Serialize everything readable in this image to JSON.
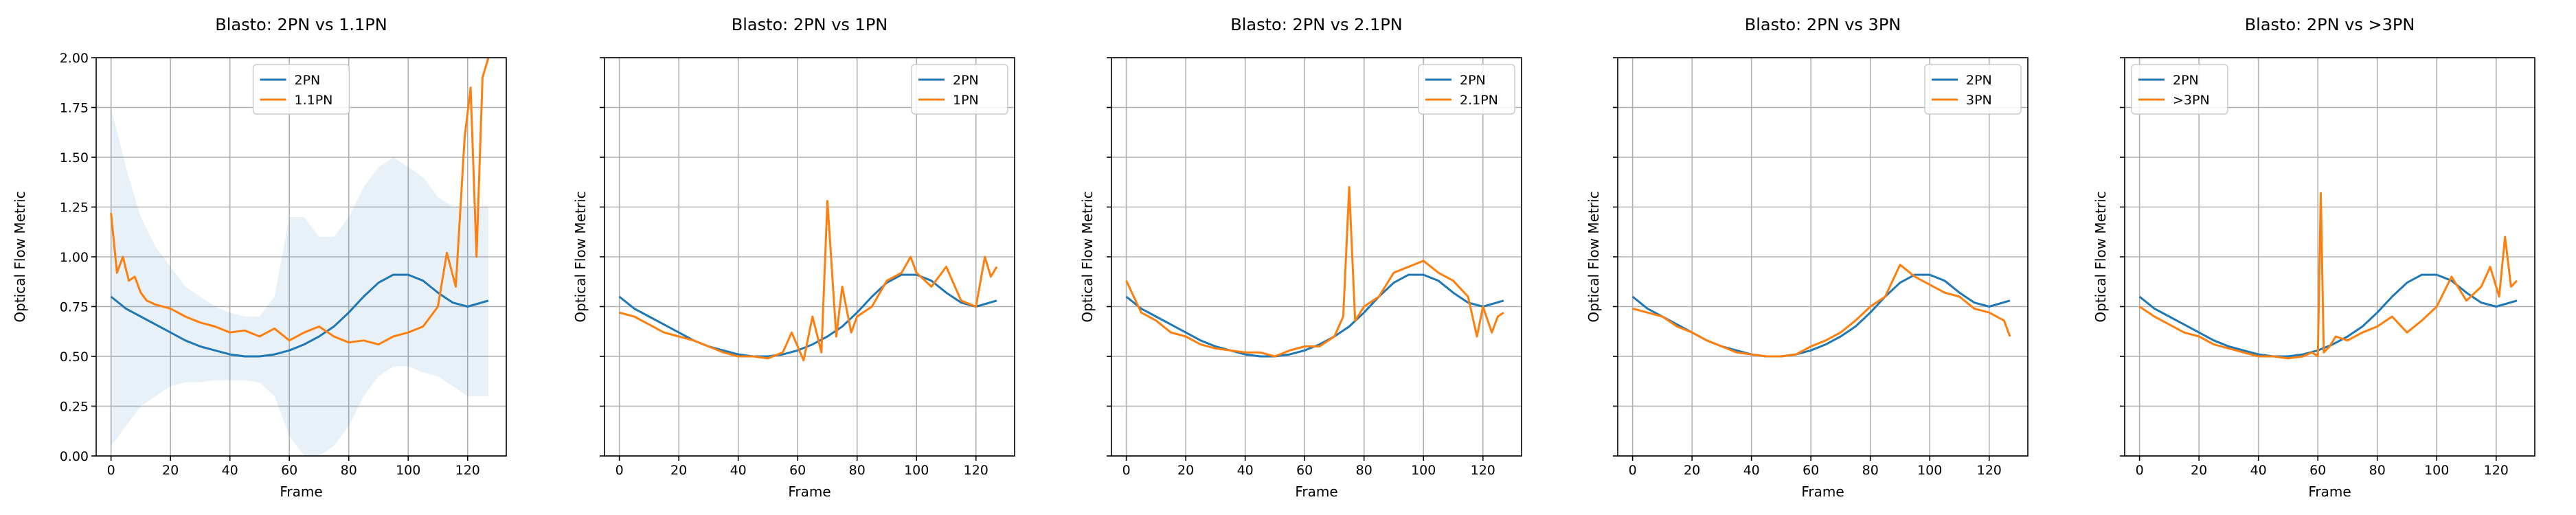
{
  "figure": {
    "shared_ylabel": "Optical Flow Metric",
    "xlabel": "Frame"
  },
  "colors": {
    "2PN": "#1f77b4",
    "other": "#ff7f0e"
  },
  "chart_data": [
    {
      "type": "line",
      "title": "Blasto: 2PN vs 1.1PN",
      "xlabel": "Frame",
      "ylabel": "Optical Flow Metric",
      "xlim": [
        -5,
        133
      ],
      "ylim": [
        0,
        2.0
      ],
      "xticks": [
        0,
        20,
        40,
        60,
        80,
        100,
        120
      ],
      "yticks": [
        0.0,
        0.25,
        0.5,
        0.75,
        1.0,
        1.25,
        1.5,
        1.75,
        2.0
      ],
      "grid": true,
      "legend": "upper-center",
      "series": [
        {
          "name": "2PN",
          "color": "#1f77b4",
          "x": [
            0,
            5,
            10,
            15,
            20,
            25,
            30,
            35,
            40,
            45,
            50,
            55,
            60,
            65,
            70,
            75,
            80,
            85,
            90,
            95,
            100,
            105,
            110,
            115,
            120,
            127
          ],
          "y": [
            0.8,
            0.74,
            0.7,
            0.66,
            0.62,
            0.58,
            0.55,
            0.53,
            0.51,
            0.5,
            0.5,
            0.51,
            0.53,
            0.56,
            0.6,
            0.65,
            0.72,
            0.8,
            0.87,
            0.91,
            0.91,
            0.88,
            0.82,
            0.77,
            0.75,
            0.78
          ],
          "band_lower": [
            0.05,
            0.15,
            0.25,
            0.3,
            0.35,
            0.37,
            0.37,
            0.38,
            0.38,
            0.38,
            0.37,
            0.3,
            0.1,
            0.0,
            0.0,
            0.05,
            0.15,
            0.3,
            0.4,
            0.45,
            0.45,
            0.42,
            0.4,
            0.35,
            0.3,
            0.3
          ],
          "band_upper": [
            1.75,
            1.45,
            1.2,
            1.05,
            0.95,
            0.85,
            0.8,
            0.75,
            0.72,
            0.7,
            0.7,
            0.8,
            1.2,
            1.2,
            1.1,
            1.1,
            1.2,
            1.35,
            1.45,
            1.5,
            1.45,
            1.4,
            1.3,
            1.25,
            1.25,
            1.25
          ]
        },
        {
          "name": "1.1PN",
          "color": "#ff7f0e",
          "x": [
            0,
            2,
            4,
            6,
            8,
            10,
            12,
            15,
            20,
            25,
            30,
            35,
            40,
            45,
            50,
            55,
            60,
            65,
            70,
            75,
            80,
            85,
            90,
            95,
            100,
            105,
            110,
            113,
            116,
            119,
            121,
            123,
            125,
            127
          ],
          "y": [
            1.22,
            0.92,
            1.0,
            0.88,
            0.9,
            0.82,
            0.78,
            0.76,
            0.74,
            0.7,
            0.67,
            0.65,
            0.62,
            0.63,
            0.6,
            0.64,
            0.58,
            0.62,
            0.65,
            0.6,
            0.57,
            0.58,
            0.56,
            0.6,
            0.62,
            0.65,
            0.75,
            1.02,
            0.85,
            1.6,
            1.85,
            1.0,
            1.9,
            2.0
          ]
        }
      ]
    },
    {
      "type": "line",
      "title": "Blasto: 2PN vs 1PN",
      "xlabel": "Frame",
      "ylabel": "Optical Flow Metric",
      "xlim": [
        -5,
        133
      ],
      "ylim": [
        0,
        2.0
      ],
      "xticks": [
        0,
        20,
        40,
        60,
        80,
        100,
        120
      ],
      "yticks": [
        0.0,
        0.25,
        0.5,
        0.75,
        1.0,
        1.25,
        1.5,
        1.75,
        2.0
      ],
      "grid": true,
      "legend": "upper-right",
      "series": [
        {
          "name": "2PN",
          "color": "#1f77b4",
          "x": [
            0,
            5,
            10,
            15,
            20,
            25,
            30,
            35,
            40,
            45,
            50,
            55,
            60,
            65,
            70,
            75,
            80,
            85,
            90,
            95,
            100,
            105,
            110,
            115,
            120,
            127
          ],
          "y": [
            0.8,
            0.74,
            0.7,
            0.66,
            0.62,
            0.58,
            0.55,
            0.53,
            0.51,
            0.5,
            0.5,
            0.51,
            0.53,
            0.56,
            0.6,
            0.65,
            0.72,
            0.8,
            0.87,
            0.91,
            0.91,
            0.88,
            0.82,
            0.77,
            0.75,
            0.78
          ]
        },
        {
          "name": "1PN",
          "color": "#ff7f0e",
          "x": [
            0,
            5,
            10,
            15,
            20,
            25,
            30,
            35,
            40,
            45,
            50,
            55,
            58,
            62,
            65,
            68,
            70,
            73,
            75,
            78,
            80,
            85,
            90,
            95,
            98,
            100,
            105,
            110,
            115,
            120,
            123,
            125,
            127
          ],
          "y": [
            0.72,
            0.7,
            0.66,
            0.62,
            0.6,
            0.58,
            0.55,
            0.52,
            0.5,
            0.5,
            0.49,
            0.52,
            0.62,
            0.48,
            0.7,
            0.52,
            1.28,
            0.6,
            0.85,
            0.62,
            0.7,
            0.75,
            0.88,
            0.92,
            1.0,
            0.92,
            0.85,
            0.95,
            0.78,
            0.75,
            1.0,
            0.9,
            0.95
          ]
        }
      ]
    },
    {
      "type": "line",
      "title": "Blasto: 2PN vs 2.1PN",
      "xlabel": "Frame",
      "ylabel": "Optical Flow Metric",
      "xlim": [
        -5,
        133
      ],
      "ylim": [
        0,
        2.0
      ],
      "xticks": [
        0,
        20,
        40,
        60,
        80,
        100,
        120
      ],
      "yticks": [
        0.0,
        0.25,
        0.5,
        0.75,
        1.0,
        1.25,
        1.5,
        1.75,
        2.0
      ],
      "grid": true,
      "legend": "upper-right",
      "series": [
        {
          "name": "2PN",
          "color": "#1f77b4",
          "x": [
            0,
            5,
            10,
            15,
            20,
            25,
            30,
            35,
            40,
            45,
            50,
            55,
            60,
            65,
            70,
            75,
            80,
            85,
            90,
            95,
            100,
            105,
            110,
            115,
            120,
            127
          ],
          "y": [
            0.8,
            0.74,
            0.7,
            0.66,
            0.62,
            0.58,
            0.55,
            0.53,
            0.51,
            0.5,
            0.5,
            0.51,
            0.53,
            0.56,
            0.6,
            0.65,
            0.72,
            0.8,
            0.87,
            0.91,
            0.91,
            0.88,
            0.82,
            0.77,
            0.75,
            0.78
          ]
        },
        {
          "name": "2.1PN",
          "color": "#ff7f0e",
          "x": [
            0,
            5,
            10,
            15,
            20,
            25,
            30,
            35,
            40,
            45,
            50,
            55,
            60,
            65,
            70,
            73,
            75,
            77,
            80,
            85,
            90,
            95,
            100,
            105,
            110,
            115,
            118,
            120,
            123,
            125,
            127
          ],
          "y": [
            0.88,
            0.72,
            0.68,
            0.62,
            0.6,
            0.56,
            0.54,
            0.53,
            0.52,
            0.52,
            0.5,
            0.53,
            0.55,
            0.55,
            0.6,
            0.7,
            1.35,
            0.68,
            0.75,
            0.8,
            0.92,
            0.95,
            0.98,
            0.92,
            0.88,
            0.8,
            0.6,
            0.75,
            0.62,
            0.7,
            0.72
          ]
        }
      ]
    },
    {
      "type": "line",
      "title": "Blasto: 2PN vs 3PN",
      "xlabel": "Frame",
      "ylabel": "Optical Flow Metric",
      "xlim": [
        -5,
        133
      ],
      "ylim": [
        0,
        2.0
      ],
      "xticks": [
        0,
        20,
        40,
        60,
        80,
        100,
        120
      ],
      "yticks": [
        0.0,
        0.25,
        0.5,
        0.75,
        1.0,
        1.25,
        1.5,
        1.75,
        2.0
      ],
      "grid": true,
      "legend": "upper-right",
      "series": [
        {
          "name": "2PN",
          "color": "#1f77b4",
          "x": [
            0,
            5,
            10,
            15,
            20,
            25,
            30,
            35,
            40,
            45,
            50,
            55,
            60,
            65,
            70,
            75,
            80,
            85,
            90,
            95,
            100,
            105,
            110,
            115,
            120,
            127
          ],
          "y": [
            0.8,
            0.74,
            0.7,
            0.66,
            0.62,
            0.58,
            0.55,
            0.53,
            0.51,
            0.5,
            0.5,
            0.51,
            0.53,
            0.56,
            0.6,
            0.65,
            0.72,
            0.8,
            0.87,
            0.91,
            0.91,
            0.88,
            0.82,
            0.77,
            0.75,
            0.78
          ]
        },
        {
          "name": "3PN",
          "color": "#ff7f0e",
          "x": [
            0,
            5,
            10,
            15,
            20,
            25,
            30,
            35,
            40,
            45,
            50,
            55,
            60,
            65,
            70,
            75,
            80,
            85,
            90,
            95,
            100,
            105,
            110,
            115,
            120,
            125,
            127
          ],
          "y": [
            0.74,
            0.72,
            0.7,
            0.65,
            0.62,
            0.58,
            0.55,
            0.52,
            0.51,
            0.5,
            0.5,
            0.51,
            0.55,
            0.58,
            0.62,
            0.68,
            0.75,
            0.8,
            0.96,
            0.9,
            0.86,
            0.82,
            0.8,
            0.74,
            0.72,
            0.68,
            0.6
          ]
        }
      ]
    },
    {
      "type": "line",
      "title": "Blasto: 2PN vs >3PN",
      "xlabel": "Frame",
      "ylabel": "Optical Flow Metric",
      "xlim": [
        -5,
        133
      ],
      "ylim": [
        0,
        2.0
      ],
      "xticks": [
        0,
        20,
        40,
        60,
        80,
        100,
        120
      ],
      "yticks": [
        0.0,
        0.25,
        0.5,
        0.75,
        1.0,
        1.25,
        1.5,
        1.75,
        2.0
      ],
      "grid": true,
      "legend": "upper-left",
      "series": [
        {
          "name": "2PN",
          "color": "#1f77b4",
          "x": [
            0,
            5,
            10,
            15,
            20,
            25,
            30,
            35,
            40,
            45,
            50,
            55,
            60,
            65,
            70,
            75,
            80,
            85,
            90,
            95,
            100,
            105,
            110,
            115,
            120,
            127
          ],
          "y": [
            0.8,
            0.74,
            0.7,
            0.66,
            0.62,
            0.58,
            0.55,
            0.53,
            0.51,
            0.5,
            0.5,
            0.51,
            0.53,
            0.56,
            0.6,
            0.65,
            0.72,
            0.8,
            0.87,
            0.91,
            0.91,
            0.88,
            0.82,
            0.77,
            0.75,
            0.78
          ]
        },
        {
          "name": ">3PN",
          "color": "#ff7f0e",
          "x": [
            0,
            5,
            10,
            15,
            20,
            25,
            30,
            35,
            40,
            45,
            50,
            55,
            58,
            60,
            61,
            62,
            64,
            66,
            70,
            75,
            80,
            85,
            90,
            95,
            100,
            105,
            110,
            115,
            118,
            121,
            123,
            125,
            127
          ],
          "y": [
            0.75,
            0.7,
            0.66,
            0.62,
            0.6,
            0.56,
            0.54,
            0.52,
            0.5,
            0.5,
            0.49,
            0.5,
            0.52,
            0.5,
            1.32,
            0.52,
            0.55,
            0.6,
            0.58,
            0.62,
            0.65,
            0.7,
            0.62,
            0.68,
            0.75,
            0.9,
            0.78,
            0.85,
            0.95,
            0.8,
            1.1,
            0.85,
            0.88
          ]
        }
      ]
    }
  ]
}
